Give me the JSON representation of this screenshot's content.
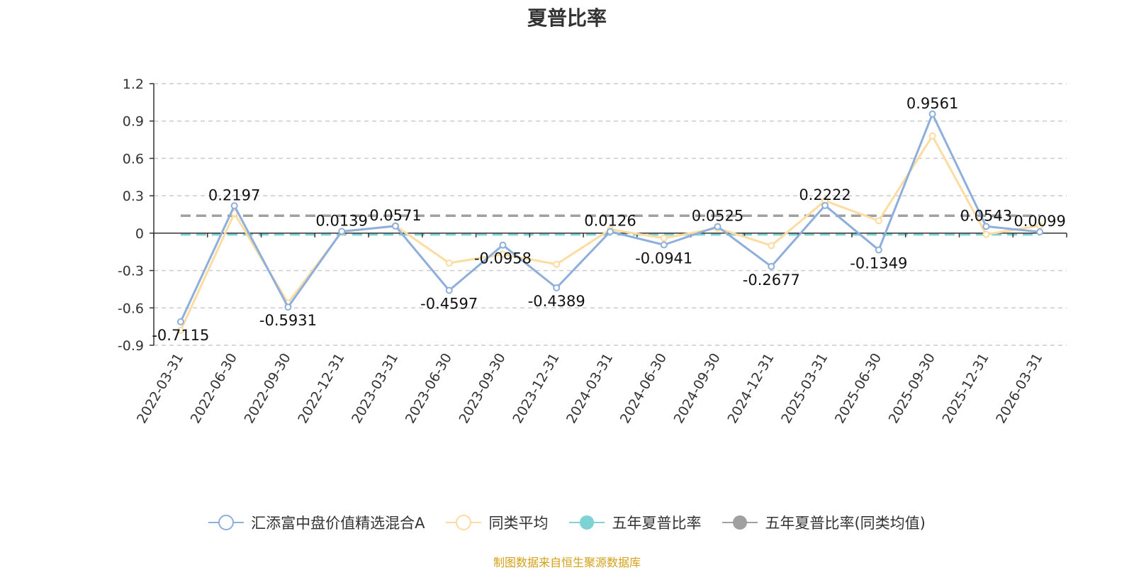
{
  "chart_data": {
    "type": "line",
    "title": "夏普比率",
    "categories": [
      "2022-03-31",
      "2022-06-30",
      "2022-09-30",
      "2022-12-31",
      "2023-03-31",
      "2023-06-30",
      "2023-09-30",
      "2023-12-31",
      "2024-03-31",
      "2024-06-30",
      "2024-09-30",
      "2024-12-31",
      "2025-03-31",
      "2025-06-30",
      "2025-09-30",
      "2025-12-31",
      "2026-03-31"
    ],
    "ylim": [
      -0.9,
      1.2
    ],
    "yticks": [
      "1.2",
      "0.9",
      "0.6",
      "0.3",
      "0",
      "-0.3",
      "-0.6",
      "-0.9"
    ],
    "grid": true,
    "legend_position": "bottom",
    "series": [
      {
        "name": "汇添富中盘价值精选混合A",
        "color": "#8eaedc",
        "values": [
          -0.7115,
          0.2197,
          -0.5931,
          0.0139,
          0.0571,
          -0.4597,
          -0.0958,
          -0.4389,
          0.0126,
          -0.0941,
          0.0525,
          -0.2677,
          0.2222,
          -0.1349,
          0.9561,
          0.0543,
          0.0099
        ],
        "data_labels": [
          "-0.7115",
          "0.2197",
          "-0.5931",
          "0.0139",
          "0.0571",
          "-0.4597",
          "-0.0958",
          "-0.4389",
          "0.0126",
          "-0.0941",
          "0.0525",
          "-0.2677",
          "0.2222",
          "-0.1349",
          "0.9561",
          "0.0543",
          "0.0099"
        ]
      },
      {
        "name": "同类平均",
        "color": "#fcdca0",
        "values": [
          -0.78,
          0.16,
          -0.56,
          0.01,
          0.06,
          -0.24,
          -0.17,
          -0.25,
          0.03,
          -0.04,
          0.04,
          -0.1,
          0.26,
          0.1,
          0.78,
          -0.01,
          0.06
        ]
      }
    ],
    "reference_lines": [
      {
        "name": "五年夏普比率",
        "color": "#7dd3d3",
        "value": -0.01
      },
      {
        "name": "五年夏普比率(同类均值)",
        "color": "#a0a0a0",
        "value": 0.14
      }
    ]
  },
  "source_text": "制图数据来自恒生聚源数据库"
}
